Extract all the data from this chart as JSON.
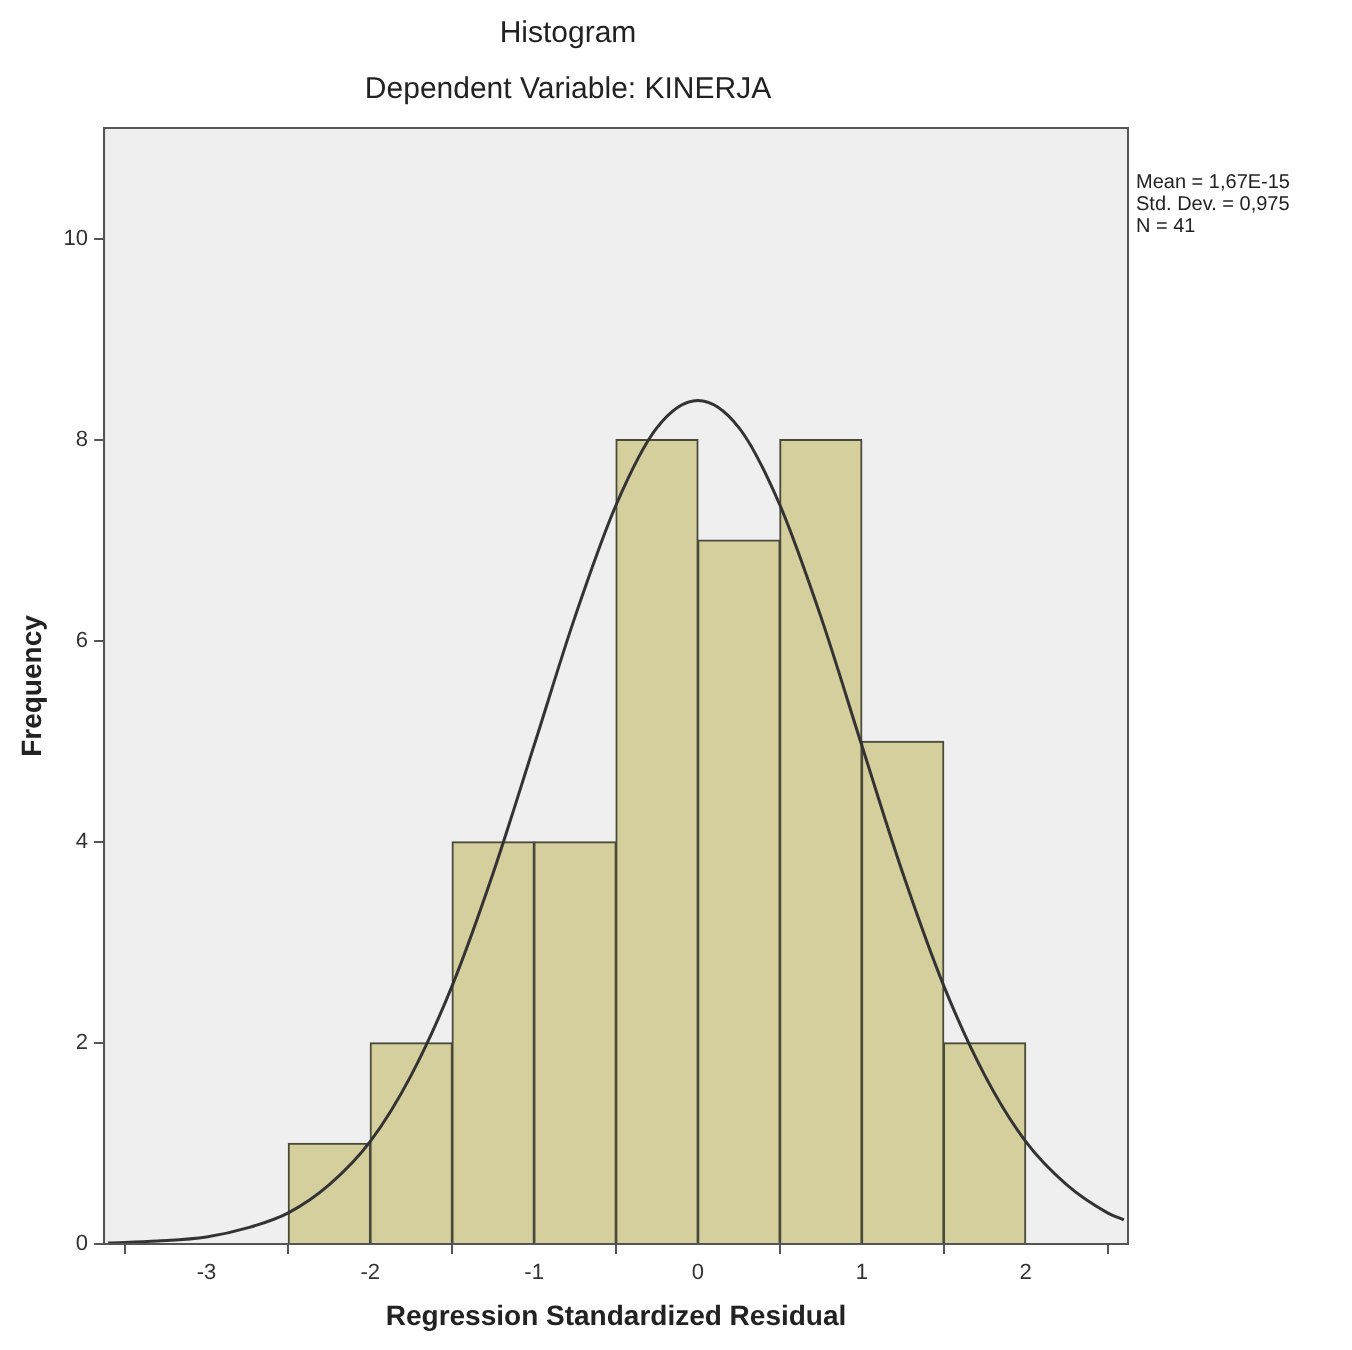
{
  "chart_data": {
    "type": "histogram",
    "title": "Histogram",
    "subtitle": "Dependent Variable: KINERJA",
    "xlabel": "Regression Standardized Residual",
    "ylabel": "Frequency",
    "xlim": [
      -3.625,
      2.625
    ],
    "xticks": [
      -3,
      -2,
      -1,
      0,
      1,
      2
    ],
    "ylim": [
      0,
      11.1
    ],
    "yticks": [
      0,
      2,
      4,
      6,
      8,
      10
    ],
    "grid": false,
    "legend": false,
    "marker": "none",
    "annotations": [
      "Mean = 1,67E-15",
      "Std. Dev. = 0,975",
      "N = 41"
    ],
    "series": [
      {
        "color": "#d4cf9c",
        "bins": [
          -2.5,
          -2,
          -1.5,
          -1,
          -0.5,
          0,
          0.5,
          1,
          1.5,
          2
        ],
        "values": [
          1,
          2,
          4,
          4,
          8,
          7,
          8,
          5,
          2
        ]
      },
      {
        "type": "line",
        "color": "#333333",
        "x": [
          -3.6,
          -3.3,
          -3,
          -2.75,
          -2.5,
          -2.25,
          -2,
          -1.75,
          -1.5,
          -1.25,
          -1,
          -0.75,
          -0.5,
          -0.25,
          0,
          0.25,
          0.5,
          0.75,
          1,
          1.25,
          1.5,
          1.75,
          2,
          2.25,
          2.5,
          2.6
        ],
        "values": [
          0.01,
          0.03,
          0.07,
          0.16,
          0.31,
          0.59,
          1.02,
          1.68,
          2.57,
          3.69,
          4.96,
          6.24,
          7.35,
          8.12,
          8.39,
          8.12,
          7.35,
          6.24,
          4.96,
          3.69,
          2.57,
          1.68,
          1.02,
          0.59,
          0.31,
          0.24
        ]
      }
    ]
  }
}
